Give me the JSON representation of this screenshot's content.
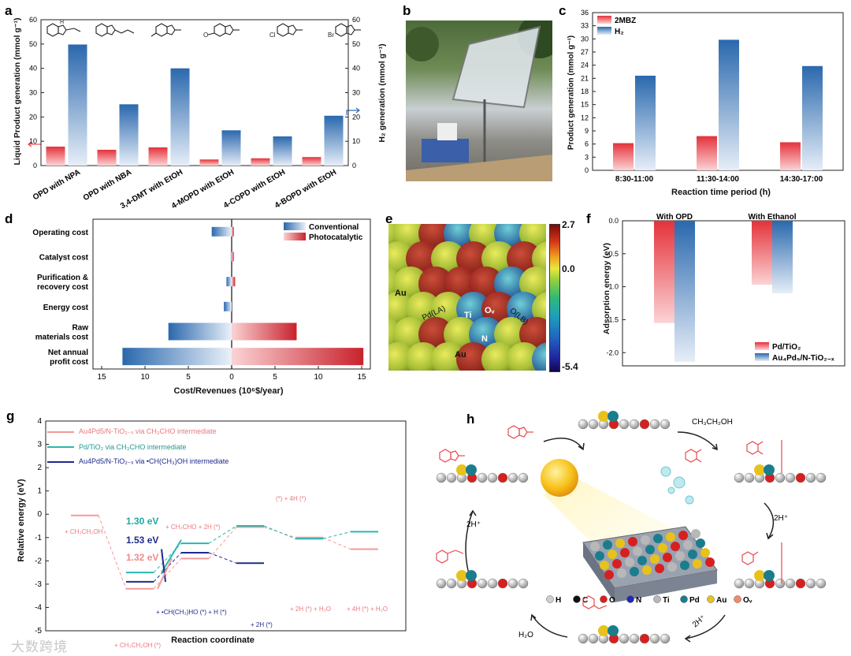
{
  "panel_a": {
    "label": "a",
    "left_axis_label": "Liquid Product generation (mmol g⁻¹)",
    "right_axis_label": "H₂ generation (mmol g⁻¹)",
    "chart_data": {
      "type": "bar",
      "categories": [
        "OPD with NPA",
        "OPD with NBA",
        "3,4-DMT with EtOH",
        "4-MOPD with EtOH",
        "4-COPD with EtOH",
        "4-BOPD with EtOH"
      ],
      "series": [
        {
          "axis": "left",
          "color": "#e8494f",
          "values": [
            7.8,
            6.5,
            7.5,
            2.5,
            3,
            3.5
          ]
        },
        {
          "axis": "right",
          "color": "#2f6fb0",
          "values": [
            49.8,
            25.2,
            40,
            14.5,
            12,
            20.5
          ]
        }
      ],
      "ylim_left": [
        0,
        60
      ],
      "ylim_right": [
        0,
        60
      ],
      "yticks_left": [
        0,
        10,
        20,
        30,
        40,
        50,
        60
      ],
      "yticks_right": [
        0,
        10,
        20,
        30,
        40,
        50,
        60
      ]
    }
  },
  "panel_b": {
    "label": "b"
  },
  "panel_c": {
    "label": "c",
    "chart_data": {
      "type": "bar",
      "categories": [
        "8:30-11:00",
        "11:30-14:00",
        "14:30-17:00"
      ],
      "series": [
        {
          "name": "2MBZ",
          "color": "#e8494f",
          "values": [
            6.2,
            7.8,
            6.4
          ]
        },
        {
          "name": "H₂",
          "color": "#2f6fb0",
          "values": [
            21.6,
            29.8,
            23.8
          ]
        }
      ],
      "xlabel": "Reaction time period (h)",
      "ylabel": "Product generation (mmol g⁻¹)",
      "ylim": [
        0,
        36
      ],
      "yticks": [
        0,
        3,
        6,
        9,
        12,
        15,
        18,
        21,
        24,
        27,
        30,
        33,
        36
      ]
    }
  },
  "panel_d": {
    "label": "d",
    "chart_data": {
      "type": "bar",
      "orientation": "horizontal",
      "categories": [
        "Operating cost",
        "Catalyst cost",
        "Purification & recovery cost",
        "Energy cost",
        "Raw materials cost",
        "Net annual profit cost"
      ],
      "category_lines": [
        [
          "Operating cost"
        ],
        [
          "Catalyst cost"
        ],
        [
          "Purification &",
          "recovery cost"
        ],
        [
          "Energy cost"
        ],
        [
          "Raw",
          "materials cost"
        ],
        [
          "Net annual",
          "profit cost"
        ]
      ],
      "series": [
        {
          "name": "Conventional",
          "color": "#2f6fb0",
          "values": [
            -2.3,
            -0.1,
            -0.6,
            -0.9,
            -7.3,
            -12.6
          ]
        },
        {
          "name": "Photocatalytic",
          "color": "#d6323b",
          "values": [
            0.25,
            0.25,
            0.4,
            0.0,
            7.5,
            15.2
          ]
        }
      ],
      "xlabel": "Cost/Revenues (10⁶$/year)",
      "xlim": [
        -16,
        16
      ],
      "xticks": [
        15,
        10,
        5,
        0,
        5,
        10,
        15
      ],
      "xtick_values": [
        -15,
        -10,
        -5,
        0,
        5,
        10,
        15
      ]
    }
  },
  "panel_e": {
    "label": "e",
    "colorbar": {
      "max": "2.7",
      "mid": "0.0",
      "min": "-5.4"
    },
    "atom_labels": [
      "Au",
      "Pd(LA)",
      "Ti",
      "Oᵥ",
      "O(LB)",
      "N",
      "Au"
    ]
  },
  "panel_f": {
    "label": "f",
    "chart_data": {
      "type": "bar",
      "categories": [
        "With OPD",
        "With Ethanol"
      ],
      "series": [
        {
          "name": "Pd/TiO₂",
          "color": "#d6323b",
          "values": [
            -1.55,
            -0.97
          ]
        },
        {
          "name": "Au₄Pd₅/N-TiO₂₋ₓ",
          "color": "#2f6fb0",
          "values": [
            -2.14,
            -1.1
          ]
        }
      ],
      "ylabel": "Adsorption energy (eV)",
      "ylim": [
        -2.2,
        0
      ],
      "yticks": [
        "0.0",
        "-0.5",
        "-1.0",
        "-1.5",
        "-2.0"
      ]
    }
  },
  "panel_g": {
    "label": "g",
    "ylabel": "Relative energy (eV)",
    "xlabel": "Reaction coordinate",
    "yticks": [
      "4",
      "3",
      "2",
      "1",
      "0",
      "-1",
      "-2",
      "-3",
      "-4",
      "-5"
    ],
    "legend": [
      {
        "color": "#f29a9a",
        "text": "Au4Pd5/N-TiO₂₋ₓ  via CH₃CHO intermediate"
      },
      {
        "color": "#2bb6b0",
        "text": "Pd/TiO₂  via CH₃CHO intermediate"
      },
      {
        "color": "#1f2a8c",
        "text": "Au4Pd5/N-TiO₂₋ₓ  via •CH(CH₃)OH intermediate"
      }
    ],
    "barriers": [
      {
        "text": "1.30 eV",
        "color": "#2bb6b0"
      },
      {
        "text": "1.53 eV",
        "color": "#1f2a8c"
      },
      {
        "text": "1.32 eV",
        "color": "#f29a9a"
      }
    ],
    "state_labels": [
      "+ CH₃CH₂OH",
      "+ CH₃CH₂OH (*)",
      "+ •CH(CH₃)HO (*) + H (*)",
      "+ CH₃CHO + 2H (*)",
      "(*) + 4H (*)",
      "+ 2H (*)",
      "+ 2H (*) + H₂O",
      "+ 4H (*) + H₂O"
    ]
  },
  "panel_h": {
    "label": "h",
    "labels": [
      "CH₃CH₂OH",
      "2H⁺",
      "2H⁺",
      "2H⁺",
      "H₂O"
    ],
    "legend": [
      {
        "symbol": "H",
        "color": "#cfcfcf"
      },
      {
        "symbol": "C",
        "color": "#111111"
      },
      {
        "symbol": "O",
        "color": "#d62020"
      },
      {
        "symbol": "N",
        "color": "#1f2ab0"
      },
      {
        "symbol": "Ti",
        "color": "#b8b8b8"
      },
      {
        "symbol": "Pd",
        "color": "#1a7d8c"
      },
      {
        "symbol": "Au",
        "color": "#e8c21c"
      },
      {
        "symbol": "Oᵥ",
        "color": "#f08a6a"
      }
    ]
  },
  "watermark": "大数跨境"
}
